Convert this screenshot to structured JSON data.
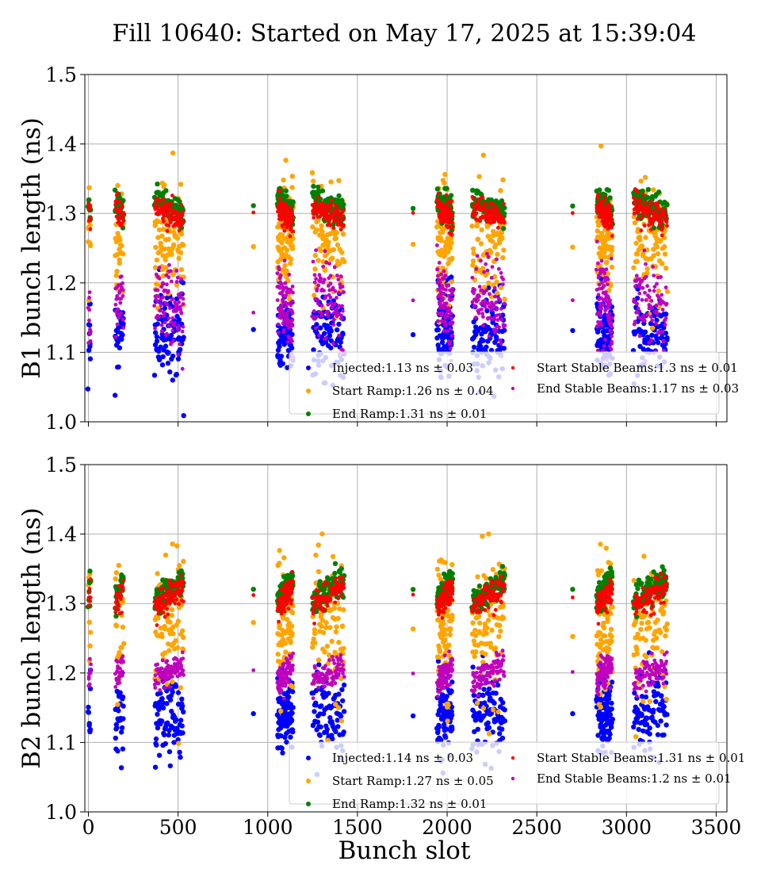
{
  "chart_data": {
    "type": "scatter",
    "title": "Fill 10640: Started on May 17, 2025 at 15:39:04",
    "xlabel": "Bunch slot",
    "xlim": [
      -20,
      3560
    ],
    "xticks": [
      0,
      500,
      1000,
      1500,
      2000,
      2500,
      3000,
      3500
    ],
    "series_colors": {
      "Injected": "#0000ff",
      "Start Ramp": "#ffa500",
      "End Ramp": "#008000",
      "Start Stable Beams": "#ff0000",
      "End Stable Beams": "#bf00bf"
    },
    "trains": [
      {
        "x0": 0,
        "x1": 12,
        "kind": "pilot"
      },
      {
        "x0": 150,
        "x1": 195,
        "kind": "short"
      },
      {
        "x0": 370,
        "x1": 530,
        "kind": "long"
      },
      {
        "x0": 920,
        "x1": 920,
        "kind": "single"
      },
      {
        "x0": 1055,
        "x1": 1140,
        "kind": "long"
      },
      {
        "x0": 1250,
        "x1": 1425,
        "kind": "long"
      },
      {
        "x0": 1810,
        "x1": 1810,
        "kind": "single"
      },
      {
        "x0": 1945,
        "x1": 2030,
        "kind": "long"
      },
      {
        "x0": 2140,
        "x1": 2320,
        "kind": "long"
      },
      {
        "x0": 2700,
        "x1": 2700,
        "kind": "single"
      },
      {
        "x0": 2835,
        "x1": 2920,
        "kind": "long"
      },
      {
        "x0": 3040,
        "x1": 3225,
        "kind": "long"
      }
    ],
    "panels": [
      {
        "ylabel": "B1 bunch length (ns)",
        "ylim": [
          1.0,
          1.5
        ],
        "yticks": [
          "1.0",
          "1.1",
          "1.2",
          "1.3",
          "1.4",
          "1.5"
        ],
        "grid": true,
        "legend_position": "lower-right",
        "show_xtick_labels": false,
        "legend_left": [
          {
            "series": "Injected",
            "label": "Injected:1.13 ns ± 0.03"
          },
          {
            "series": "Start Ramp",
            "label": "Start Ramp:1.26 ns ± 0.04"
          },
          {
            "series": "End Ramp",
            "label": "End Ramp:1.31 ns ± 0.01"
          }
        ],
        "legend_right": [
          {
            "series": "Start Stable Beams",
            "label": "Start Stable Beams:1.3 ns ± 0.01"
          },
          {
            "series": "End Stable Beams",
            "label": "End Stable Beams:1.17 ns ± 0.03"
          }
        ],
        "series": [
          {
            "name": "Injected",
            "mean": 1.13,
            "std": 0.03,
            "trend": 0.0
          },
          {
            "name": "Start Ramp",
            "mean": 1.26,
            "std": 0.04,
            "trend": 0.0
          },
          {
            "name": "End Ramp",
            "mean": 1.31,
            "std": 0.01,
            "trend": -0.02
          },
          {
            "name": "Start Stable Beams",
            "mean": 1.3,
            "std": 0.01,
            "trend": -0.02
          },
          {
            "name": "End Stable Beams",
            "mean": 1.17,
            "std": 0.03,
            "trend": -0.03
          }
        ]
      },
      {
        "ylabel": "B2 bunch length (ns)",
        "ylim": [
          1.0,
          1.5
        ],
        "yticks": [
          "1.0",
          "1.1",
          "1.2",
          "1.3",
          "1.4",
          "1.5"
        ],
        "grid": true,
        "legend_position": "lower-right",
        "show_xtick_labels": true,
        "legend_left": [
          {
            "series": "Injected",
            "label": "Injected:1.14 ns ± 0.03"
          },
          {
            "series": "Start Ramp",
            "label": "Start Ramp:1.27 ns ± 0.05"
          },
          {
            "series": "End Ramp",
            "label": "End Ramp:1.32 ns ± 0.01"
          }
        ],
        "legend_right": [
          {
            "series": "Start Stable Beams",
            "label": "Start Stable Beams:1.31 ns ± 0.01"
          },
          {
            "series": "End Stable Beams",
            "label": "End Stable Beams:1.2 ns ± 0.01"
          }
        ],
        "series": [
          {
            "name": "Injected",
            "mean": 1.14,
            "std": 0.03,
            "trend": 0.0
          },
          {
            "name": "Start Ramp",
            "mean": 1.27,
            "std": 0.05,
            "trend": 0.0
          },
          {
            "name": "End Ramp",
            "mean": 1.32,
            "std": 0.01,
            "trend": 0.03
          },
          {
            "name": "Start Stable Beams",
            "mean": 1.31,
            "std": 0.01,
            "trend": 0.03
          },
          {
            "name": "End Stable Beams",
            "mean": 1.2,
            "std": 0.01,
            "trend": 0.02
          }
        ]
      }
    ]
  }
}
